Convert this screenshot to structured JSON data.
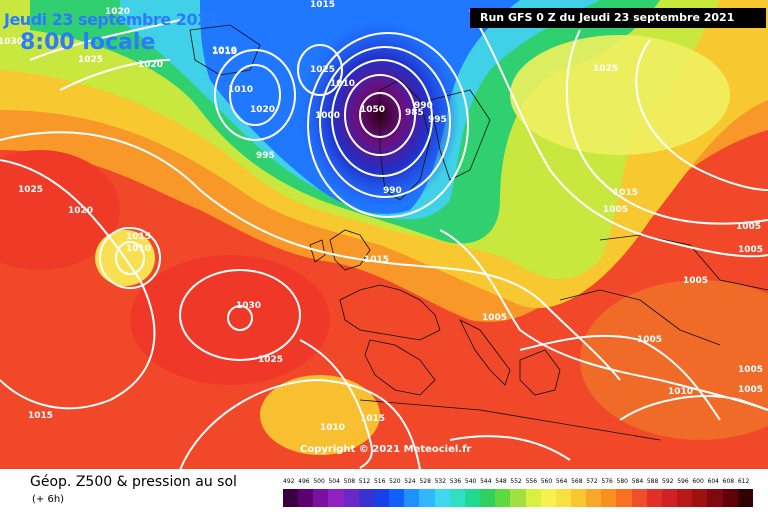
{
  "header": {
    "date": "Jeudi 23 septembre 2021",
    "time": "8:00 locale",
    "run": "Run GFS 0 Z du Jeudi 23 septembre 2021"
  },
  "footer": {
    "title": "Géop. Z500 & pression au sol",
    "subtitle": "(+ 6h)",
    "copyright": "Copyright © 2021 Meteociel.fr"
  },
  "legend": {
    "ticks": [
      "492",
      "496",
      "500",
      "504",
      "508",
      "512",
      "516",
      "520",
      "524",
      "528",
      "532",
      "536",
      "540",
      "544",
      "548",
      "552",
      "556",
      "560",
      "564",
      "568",
      "572",
      "576",
      "580",
      "584",
      "588",
      "592",
      "596",
      "600",
      "604",
      "608",
      "612"
    ],
    "colors": [
      "#3a0040",
      "#5a0070",
      "#7a10a0",
      "#9020c0",
      "#6a28c8",
      "#3830d0",
      "#1840e8",
      "#1060ff",
      "#2090ff",
      "#30b8ff",
      "#40d8f0",
      "#30e0c0",
      "#20d890",
      "#30d060",
      "#60d840",
      "#a0e040",
      "#d8f040",
      "#f8f050",
      "#f8e040",
      "#f8c830",
      "#f8a828",
      "#f89020",
      "#f87020",
      "#f05028",
      "#e03028",
      "#d02028",
      "#b81818",
      "#a01010",
      "#800810",
      "#600008",
      "#300004"
    ]
  },
  "pressure_labels": [
    "1020",
    "1015",
    "1030",
    "1025",
    "1010",
    "1010",
    "1020",
    "1000",
    "1025",
    "995",
    "1020",
    "1015",
    "1010",
    "1050",
    "990",
    "985",
    "995",
    "990",
    "1025",
    "1015",
    "1005",
    "1005",
    "1005",
    "1015",
    "1005",
    "1005",
    "1010",
    "1005",
    "1025",
    "1030",
    "1025",
    "1020",
    "1015",
    "1010",
    "1015",
    "1010",
    "1015",
    "1005",
    "1005"
  ]
}
